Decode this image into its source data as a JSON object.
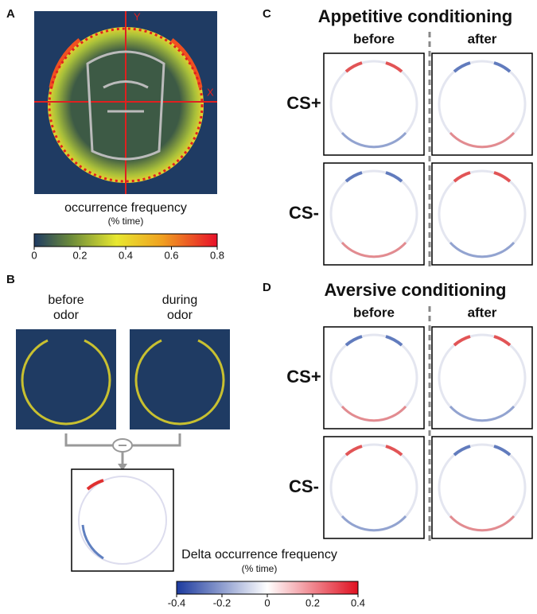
{
  "panels": [
    {
      "label": "A",
      "axis_x": "X",
      "axis_y": "Y",
      "caption": "occurrence frequency",
      "caption_unit": "(% time)",
      "colorbar_ticks": [
        0,
        0.2,
        0.4,
        0.6,
        0.8
      ]
    },
    {
      "label": "B",
      "left_title": [
        "before",
        "odor"
      ],
      "right_title": [
        "during",
        "odor"
      ],
      "caption": "Delta occurrence frequency",
      "caption_unit": "(% time)",
      "colorbar_ticks": [
        -0.4,
        -0.2,
        0,
        0.2,
        0.4
      ]
    },
    {
      "label": "C",
      "title": "Appetitive conditioning",
      "columns": [
        "before",
        "after"
      ],
      "rows": [
        "CS+",
        "CS-"
      ]
    },
    {
      "label": "D",
      "title": "Aversive conditioning",
      "columns": [
        "before",
        "after"
      ],
      "rows": [
        "CS+",
        "CS-"
      ]
    }
  ]
}
